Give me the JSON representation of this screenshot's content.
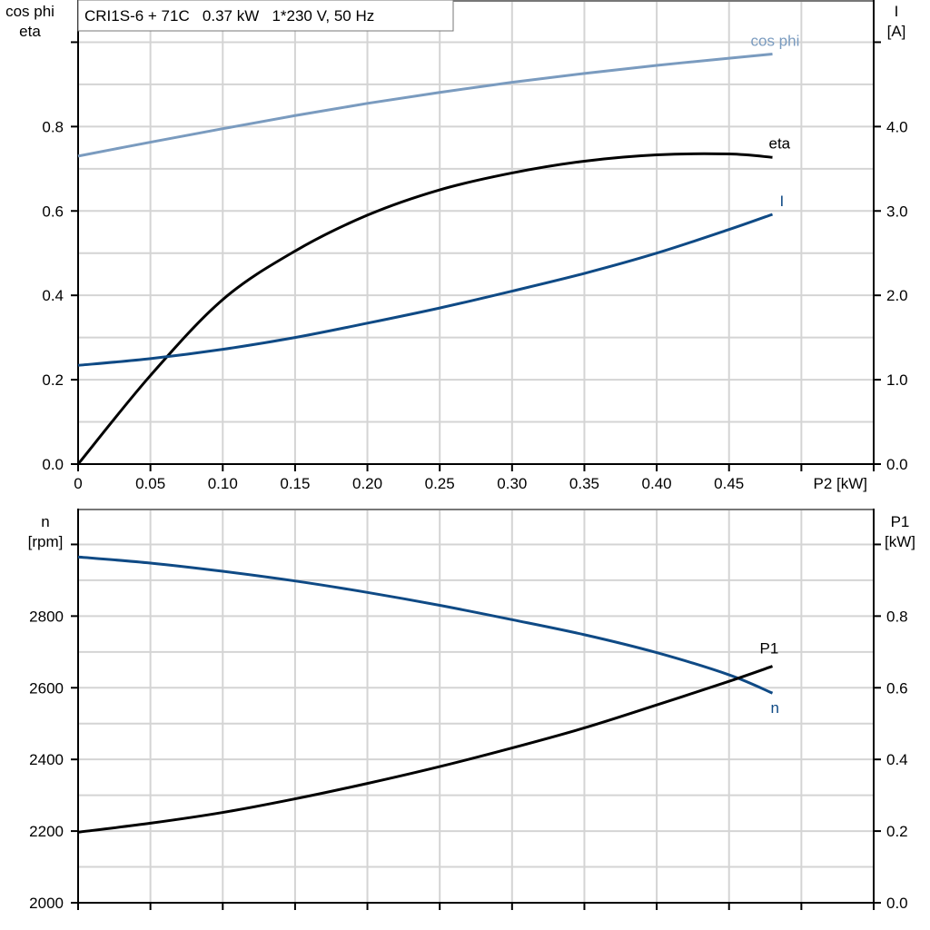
{
  "title": "CRI1S-6 + 71C   0.37 kW   1*230 V, 50 Hz",
  "colors": {
    "cos_phi": "#7a9bbf",
    "current": "#0f4a85",
    "eta": "#000000",
    "speed": "#0f4a85",
    "p1": "#000000",
    "grid": "#d4d4d4"
  },
  "chart_data": [
    {
      "type": "line",
      "xlabel": "P2 [kW]",
      "xlim": [
        0,
        0.55
      ],
      "xticks": [
        "0",
        "0.05",
        "0.10",
        "0.15",
        "0.20",
        "0.25",
        "0.30",
        "0.35",
        "0.40",
        "0.45"
      ],
      "xtick_values": [
        0,
        0.05,
        0.1,
        0.15,
        0.2,
        0.25,
        0.3,
        0.35,
        0.4,
        0.45
      ],
      "ylabel_left": [
        "cos phi",
        "eta"
      ],
      "ylim_left": [
        0,
        1.1
      ],
      "yticks_left": [
        "0.0",
        "0.2",
        "0.4",
        "0.6",
        "0.8"
      ],
      "ylabel_right": [
        "I",
        "[A]"
      ],
      "ylim_right": [
        0,
        5.5
      ],
      "yticks_right": [
        "0.0",
        "1.0",
        "2.0",
        "3.0",
        "4.0"
      ],
      "grid": true,
      "x": [
        0,
        0.05,
        0.1,
        0.15,
        0.2,
        0.25,
        0.3,
        0.35,
        0.4,
        0.45,
        0.48
      ],
      "series": [
        {
          "name": "cos phi",
          "axis": "left",
          "color_key": "cos_phi",
          "values": [
            0.73,
            0.763,
            0.795,
            0.826,
            0.855,
            0.881,
            0.905,
            0.926,
            0.945,
            0.962,
            0.972
          ]
        },
        {
          "name": "eta",
          "axis": "left",
          "color_key": "eta",
          "values": [
            0,
            0.21,
            0.39,
            0.505,
            0.59,
            0.65,
            0.69,
            0.718,
            0.733,
            0.735,
            0.727
          ]
        },
        {
          "name": "I",
          "axis": "right",
          "color_key": "current",
          "values": [
            1.17,
            1.25,
            1.36,
            1.5,
            1.67,
            1.85,
            2.05,
            2.26,
            2.5,
            2.78,
            2.96
          ]
        }
      ]
    },
    {
      "type": "line",
      "xlim": [
        0,
        0.55
      ],
      "ylabel_left": [
        "n",
        "[rpm]"
      ],
      "ylim_left": [
        2000,
        3100
      ],
      "yticks_left": [
        "2000",
        "2200",
        "2400",
        "2600",
        "2800"
      ],
      "ylabel_right": [
        "P1",
        "[kW]"
      ],
      "ylim_right": [
        0,
        1.1
      ],
      "yticks_right": [
        "0.0",
        "0.2",
        "0.4",
        "0.6",
        "0.8"
      ],
      "grid": true,
      "x": [
        0,
        0.05,
        0.1,
        0.15,
        0.2,
        0.25,
        0.3,
        0.35,
        0.4,
        0.45,
        0.48
      ],
      "series": [
        {
          "name": "n",
          "axis": "left",
          "color_key": "speed",
          "values": [
            2965,
            2948,
            2925,
            2898,
            2866,
            2830,
            2790,
            2748,
            2698,
            2636,
            2585
          ]
        },
        {
          "name": "P1",
          "axis": "right",
          "color_key": "p1",
          "values": [
            0.197,
            0.222,
            0.252,
            0.29,
            0.333,
            0.38,
            0.432,
            0.488,
            0.552,
            0.618,
            0.66
          ]
        }
      ]
    }
  ]
}
